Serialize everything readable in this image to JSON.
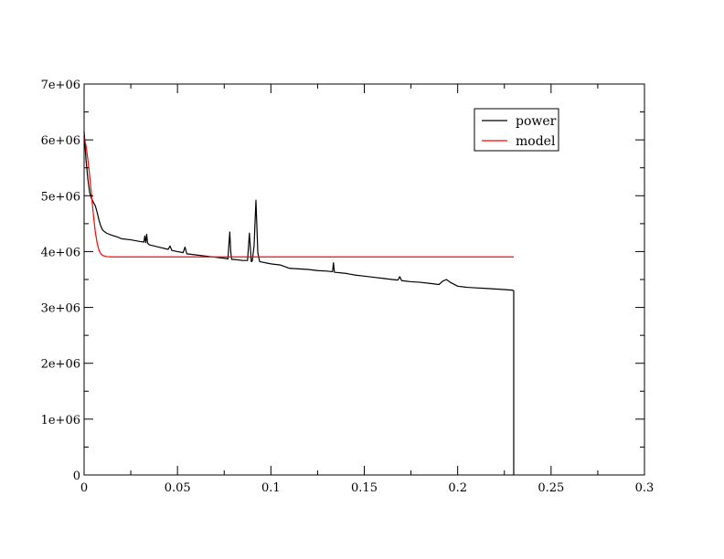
{
  "chart_data": {
    "type": "line",
    "title": "",
    "xlabel": "",
    "ylabel": "",
    "xlim": [
      0,
      0.3
    ],
    "ylim": [
      0,
      7000000
    ],
    "grid": false,
    "legend_placement": "top-right",
    "x_ticks": [
      {
        "value": 0,
        "label": "0"
      },
      {
        "value": 0.05,
        "label": "0.05"
      },
      {
        "value": 0.1,
        "label": "0.1"
      },
      {
        "value": 0.15,
        "label": "0.15"
      },
      {
        "value": 0.2,
        "label": "0.2"
      },
      {
        "value": 0.25,
        "label": "0.25"
      },
      {
        "value": 0.3,
        "label": "0.3"
      }
    ],
    "y_ticks": [
      {
        "value": 0,
        "label": "0"
      },
      {
        "value": 1000000,
        "label": "1e+06"
      },
      {
        "value": 2000000,
        "label": "2e+06"
      },
      {
        "value": 3000000,
        "label": "3e+06"
      },
      {
        "value": 4000000,
        "label": "4e+06"
      },
      {
        "value": 5000000,
        "label": "5e+06"
      },
      {
        "value": 6000000,
        "label": "6e+06"
      },
      {
        "value": 7000000,
        "label": "7e+06"
      }
    ],
    "series": [
      {
        "name": "power",
        "color": "#000000",
        "points": [
          [
            0,
            6150000
          ],
          [
            0.001,
            5650000
          ],
          [
            0.002,
            5300000
          ],
          [
            0.003,
            5050000
          ],
          [
            0.004,
            4950000
          ],
          [
            0.005,
            4880000
          ],
          [
            0.006,
            4820000
          ],
          [
            0.007,
            4700000
          ],
          [
            0.008,
            4560000
          ],
          [
            0.009,
            4450000
          ],
          [
            0.01,
            4380000
          ],
          [
            0.012,
            4330000
          ],
          [
            0.015,
            4290000
          ],
          [
            0.018,
            4260000
          ],
          [
            0.02,
            4230000
          ],
          [
            0.025,
            4210000
          ],
          [
            0.03,
            4180000
          ],
          [
            0.032,
            4170000
          ],
          [
            0.0325,
            4280000
          ],
          [
            0.033,
            4160000
          ],
          [
            0.0335,
            4310000
          ],
          [
            0.034,
            4150000
          ],
          [
            0.035,
            4120000
          ],
          [
            0.04,
            4080000
          ],
          [
            0.045,
            4040000
          ],
          [
            0.046,
            4100000
          ],
          [
            0.047,
            4020000
          ],
          [
            0.05,
            4000000
          ],
          [
            0.053,
            3980000
          ],
          [
            0.054,
            4080000
          ],
          [
            0.055,
            3960000
          ],
          [
            0.06,
            3940000
          ],
          [
            0.065,
            3920000
          ],
          [
            0.07,
            3900000
          ],
          [
            0.075,
            3880000
          ],
          [
            0.077,
            3870000
          ],
          [
            0.0775,
            4120000
          ],
          [
            0.078,
            4350000
          ],
          [
            0.0785,
            4000000
          ],
          [
            0.079,
            3860000
          ],
          [
            0.08,
            3860000
          ],
          [
            0.085,
            3840000
          ],
          [
            0.0875,
            3840000
          ],
          [
            0.0885,
            4330000
          ],
          [
            0.0895,
            3820000
          ],
          [
            0.09,
            3830000
          ],
          [
            0.091,
            4100000
          ],
          [
            0.092,
            4920000
          ],
          [
            0.093,
            3980000
          ],
          [
            0.094,
            3820000
          ],
          [
            0.1,
            3780000
          ],
          [
            0.105,
            3760000
          ],
          [
            0.11,
            3700000
          ],
          [
            0.115,
            3690000
          ],
          [
            0.12,
            3680000
          ],
          [
            0.125,
            3660000
          ],
          [
            0.13,
            3650000
          ],
          [
            0.133,
            3640000
          ],
          [
            0.1335,
            3800000
          ],
          [
            0.134,
            3630000
          ],
          [
            0.14,
            3610000
          ],
          [
            0.145,
            3580000
          ],
          [
            0.15,
            3560000
          ],
          [
            0.155,
            3540000
          ],
          [
            0.16,
            3520000
          ],
          [
            0.165,
            3500000
          ],
          [
            0.168,
            3490000
          ],
          [
            0.169,
            3550000
          ],
          [
            0.17,
            3480000
          ],
          [
            0.175,
            3460000
          ],
          [
            0.18,
            3450000
          ],
          [
            0.185,
            3430000
          ],
          [
            0.19,
            3410000
          ],
          [
            0.192,
            3470000
          ],
          [
            0.194,
            3500000
          ],
          [
            0.196,
            3450000
          ],
          [
            0.2,
            3380000
          ],
          [
            0.205,
            3360000
          ],
          [
            0.21,
            3350000
          ],
          [
            0.215,
            3340000
          ],
          [
            0.22,
            3330000
          ],
          [
            0.225,
            3320000
          ],
          [
            0.229,
            3310000
          ],
          [
            0.23,
            3300000
          ],
          [
            0.23,
            0
          ]
        ]
      },
      {
        "name": "model",
        "color": "#ff0000",
        "points": [
          [
            0,
            6050000
          ],
          [
            0.001,
            5900000
          ],
          [
            0.002,
            5650000
          ],
          [
            0.003,
            5350000
          ],
          [
            0.004,
            5000000
          ],
          [
            0.005,
            4650000
          ],
          [
            0.006,
            4350000
          ],
          [
            0.007,
            4150000
          ],
          [
            0.008,
            4020000
          ],
          [
            0.009,
            3960000
          ],
          [
            0.01,
            3930000
          ],
          [
            0.012,
            3910000
          ],
          [
            0.015,
            3905000
          ],
          [
            0.03,
            3905000
          ],
          [
            0.1,
            3905000
          ],
          [
            0.2,
            3905000
          ],
          [
            0.23,
            3905000
          ]
        ]
      }
    ]
  }
}
